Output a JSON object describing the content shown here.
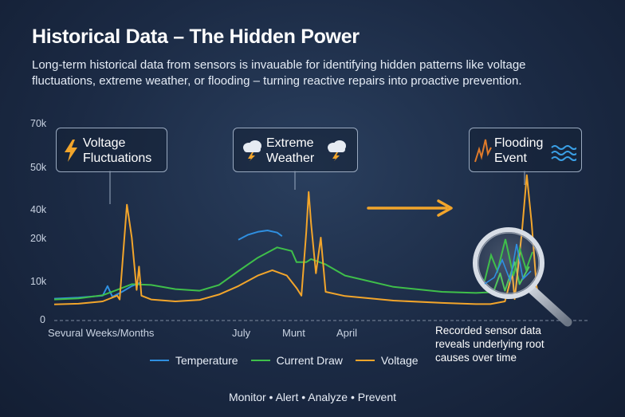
{
  "title": "Historical Data – The Hidden Power",
  "subtitle": "Long-term historical data from sensors is invauable for identifying hidden patterns like voltage fluctuations, extreme weather, or flooding – turning reactive repairs into proactive prevention.",
  "callouts": {
    "voltage": {
      "label_1": "Voltage",
      "label_2": "Fluctuations",
      "icon": "lightning-bolt-icon"
    },
    "weather": {
      "label_1": "Extreme",
      "label_2": "Weather",
      "icon": "storm-cloud-icon"
    },
    "flood": {
      "label_1": "Flooding",
      "label_2": "Event",
      "icon": "water-waves-icon"
    }
  },
  "annotation": {
    "line_1": "Recorded sensor data",
    "line_2": "reveals underlying root",
    "line_3": "causes over time"
  },
  "footer": "Monitor • Alert • Analyze • Prevent",
  "colors": {
    "temperature": "#2f8fe0",
    "current_draw": "#3fbf4a",
    "voltage": "#f2a52b",
    "arrow": "#f2a52b"
  },
  "chart_data": {
    "type": "line",
    "y_ticks": [
      "70k",
      "50k",
      "40k",
      "20k",
      "10k",
      "0"
    ],
    "x_ticks": [
      "Sevural Weeks/Months",
      "July",
      "Munt",
      "April"
    ],
    "ylim": [
      0,
      70000
    ],
    "legend_position": "bottom-center",
    "grid": false,
    "series": [
      {
        "name": "Temperature",
        "segments": [
          [
            [
              0,
              5700
            ],
            [
              0.05,
              6000
            ],
            [
              0.1,
              6500
            ],
            [
              0.11,
              9000
            ],
            [
              0.12,
              6200
            ],
            [
              0.14,
              7500
            ],
            [
              0.16,
              9000
            ],
            [
              0.18,
              10000
            ]
          ],
          [
            [
              0.38,
              19500
            ],
            [
              0.4,
              22000
            ],
            [
              0.42,
              24000
            ],
            [
              0.44,
              25000
            ],
            [
              0.46,
              23500
            ],
            [
              0.47,
              21000
            ]
          ]
        ]
      },
      {
        "name": "Current Draw",
        "segments": [
          [
            [
              0,
              5500
            ],
            [
              0.05,
              5800
            ],
            [
              0.1,
              6600
            ],
            [
              0.14,
              8500
            ],
            [
              0.16,
              9500
            ],
            [
              0.2,
              9300
            ],
            [
              0.25,
              8200
            ],
            [
              0.3,
              7800
            ],
            [
              0.34,
              9300
            ],
            [
              0.38,
              12500
            ],
            [
              0.42,
              15500
            ],
            [
              0.46,
              17800
            ],
            [
              0.49,
              17000
            ],
            [
              0.5,
              14500
            ],
            [
              0.52,
              14500
            ],
            [
              0.53,
              15200
            ],
            [
              0.56,
              14000
            ],
            [
              0.6,
              11500
            ],
            [
              0.7,
              8800
            ],
            [
              0.8,
              7500
            ],
            [
              0.87,
              7200
            ],
            [
              0.9,
              7400
            ],
            [
              0.905,
              7000
            ],
            [
              0.92,
              12000
            ],
            [
              0.93,
              7800
            ],
            [
              0.95,
              14500
            ],
            [
              0.96,
              9500
            ],
            [
              0.98,
              13500
            ]
          ]
        ]
      },
      {
        "name": "Voltage",
        "segments": [
          [
            [
              0,
              4200
            ],
            [
              0.05,
              4400
            ],
            [
              0.1,
              5000
            ],
            [
              0.13,
              6500
            ],
            [
              0.135,
              5500
            ],
            [
              0.15,
              41000
            ],
            [
              0.16,
              20000
            ],
            [
              0.17,
              8000
            ],
            [
              0.175,
              13500
            ],
            [
              0.18,
              6500
            ],
            [
              0.2,
              5500
            ],
            [
              0.25,
              5000
            ],
            [
              0.3,
              5400
            ],
            [
              0.34,
              6800
            ],
            [
              0.38,
              9000
            ],
            [
              0.42,
              11500
            ],
            [
              0.45,
              12700
            ],
            [
              0.48,
              11500
            ],
            [
              0.5,
              8500
            ],
            [
              0.51,
              6500
            ],
            [
              0.52,
              24000
            ],
            [
              0.525,
              44000
            ],
            [
              0.53,
              30000
            ],
            [
              0.54,
              12000
            ],
            [
              0.55,
              20000
            ],
            [
              0.56,
              7500
            ],
            [
              0.6,
              6400
            ],
            [
              0.7,
              5200
            ],
            [
              0.8,
              4600
            ],
            [
              0.87,
              4300
            ],
            [
              0.9,
              4300
            ],
            [
              0.93,
              5000
            ],
            [
              0.945,
              12000
            ],
            [
              0.95,
              5600
            ],
            [
              0.965,
              24000
            ],
            [
              0.975,
              48000
            ],
            [
              0.985,
              30000
            ],
            [
              0.995,
              9000
            ],
            [
              1,
              6000
            ]
          ]
        ]
      }
    ]
  }
}
